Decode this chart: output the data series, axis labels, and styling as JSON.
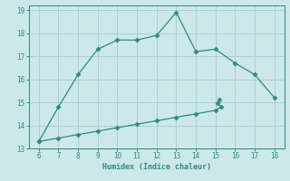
{
  "xlabel": "Humidex (Indice chaleur)",
  "x_upper": [
    6,
    7,
    8,
    9,
    10,
    11,
    12,
    13,
    14,
    15,
    16,
    17,
    18
  ],
  "y_upper": [
    13.3,
    14.8,
    16.2,
    17.3,
    17.7,
    17.7,
    17.9,
    18.9,
    17.2,
    17.3,
    16.7,
    16.2,
    15.2
  ],
  "x_lower": [
    6,
    7,
    8,
    9,
    10,
    11,
    12,
    13,
    14,
    15.0,
    15.3,
    15.1,
    15.2
  ],
  "y_lower": [
    13.3,
    13.45,
    13.6,
    13.75,
    13.9,
    14.05,
    14.2,
    14.35,
    14.5,
    14.65,
    14.8,
    14.95,
    15.1
  ],
  "line_color": "#2e8b7a",
  "bg_color": "#cce8ea",
  "grid_color": "#aacfd4",
  "xlim": [
    5.5,
    18.5
  ],
  "ylim": [
    13.0,
    19.2
  ],
  "xticks": [
    6,
    7,
    8,
    9,
    10,
    11,
    12,
    13,
    14,
    15,
    16,
    17,
    18
  ],
  "yticks": [
    13,
    14,
    15,
    16,
    17,
    18,
    19
  ]
}
